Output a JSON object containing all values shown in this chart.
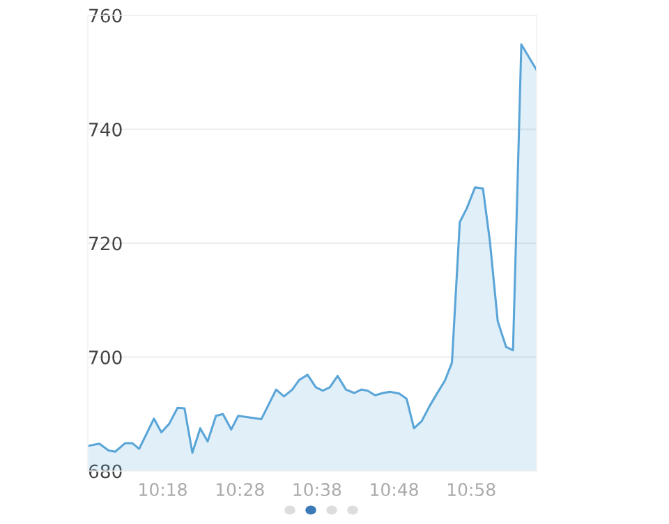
{
  "chart_data": {
    "type": "area",
    "x": [
      10.138,
      10.163,
      10.183,
      10.197,
      10.219,
      10.234,
      10.249,
      10.281,
      10.297,
      10.314,
      10.332,
      10.347,
      10.364,
      10.381,
      10.397,
      10.415,
      10.43,
      10.448,
      10.463,
      10.513,
      10.545,
      10.562,
      10.58,
      10.595,
      10.613,
      10.631,
      10.646,
      10.661,
      10.678,
      10.696,
      10.714,
      10.729,
      10.743,
      10.759,
      10.776,
      10.791,
      10.811,
      10.827,
      10.843,
      10.86,
      10.876,
      10.892,
      10.91,
      10.925,
      10.942,
      10.957,
      10.975,
      10.992,
      11.007,
      11.024,
      11.042,
      11.057,
      11.075,
      11.108
    ],
    "series": [
      {
        "color": "#5aa5d8",
        "values": [
          684.4,
          684.8,
          683.6,
          683.4,
          684.9,
          684.9,
          683.9,
          689.2,
          686.8,
          688.3,
          691.1,
          691.0,
          683.2,
          687.5,
          685.2,
          689.7,
          690.0,
          687.3,
          689.7,
          689.1,
          694.3,
          693.1,
          694.3,
          696.0,
          696.9,
          694.7,
          694.1,
          694.7,
          696.7,
          694.3,
          693.7,
          694.3,
          694.1,
          693.3,
          693.7,
          693.9,
          693.6,
          692.7,
          687.5,
          688.8,
          691.3,
          693.5,
          695.9,
          699.0,
          723.7,
          726.1,
          729.8,
          729.6,
          720.4,
          706.3,
          701.8,
          701.2,
          754.9,
          750.4
        ]
      }
    ],
    "xlim": [
      10.138,
      11.108
    ],
    "xticks": [
      {
        "value": 10.3,
        "label": "10:18"
      },
      {
        "value": 10.4667,
        "label": "10:28"
      },
      {
        "value": 10.6333,
        "label": "10:38"
      },
      {
        "value": 10.8,
        "label": "10:48"
      },
      {
        "value": 10.9667,
        "label": "10:58"
      }
    ],
    "ylim": [
      680,
      760
    ],
    "yticks": [
      680,
      700,
      720,
      740,
      760
    ],
    "grid": "y"
  }
}
